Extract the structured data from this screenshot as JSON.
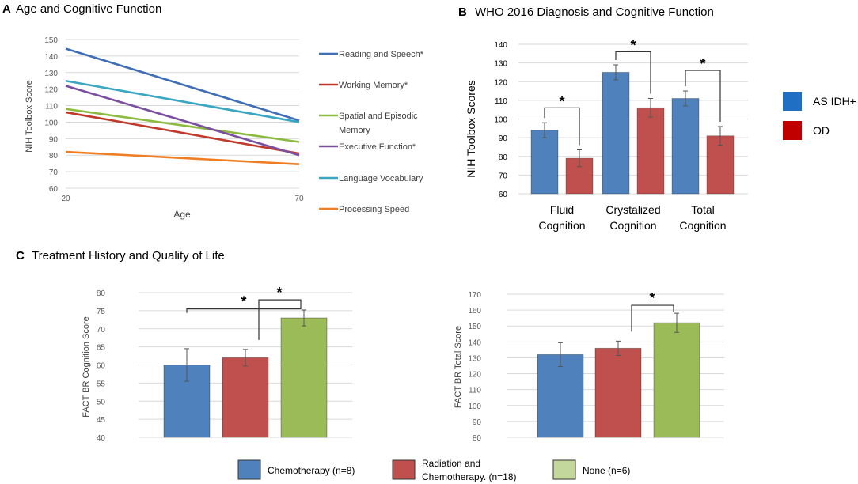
{
  "colors": {
    "reading": "#3f6eb5",
    "working": "#c0392b",
    "spatial": "#8cba3f",
    "executive": "#7b4fa0",
    "language": "#3aa6c2",
    "processing": "#ef7d22",
    "blue_bar": "#4f81bd",
    "red_bar": "#c0504d",
    "green_bar": "#9bbb59",
    "legend_blue": "#1f6fc4",
    "legend_red": "#c00000",
    "legend_chemo": "#4f81bd",
    "legend_rad": "#c0504d",
    "legend_none": "#c3d69b",
    "grid": "#d9d9d9",
    "axis_text": "#595959"
  },
  "chart_data": [
    {
      "id": "A",
      "panel_letter": "A",
      "type": "line",
      "title": "Age and Cognitive Function",
      "xlabel": "Age",
      "ylabel": "NIH Toolbox Score",
      "x": [
        20,
        70
      ],
      "xticks": [
        "20",
        "70"
      ],
      "ylim": [
        60,
        150
      ],
      "yticks": [
        60,
        70,
        80,
        90,
        100,
        110,
        120,
        130,
        140,
        150
      ],
      "series": [
        {
          "name": "Reading and Speech*",
          "values": [
            144.5,
            101
          ],
          "color_key": "reading"
        },
        {
          "name": "Working Memory*",
          "values": [
            106,
            81
          ],
          "color_key": "working"
        },
        {
          "name": "Spatial and Episodic Memory",
          "values": [
            108,
            88
          ],
          "color_key": "spatial"
        },
        {
          "name": "Executive Function*",
          "values": [
            122,
            80
          ],
          "color_key": "executive"
        },
        {
          "name": "Language Vocabulary",
          "values": [
            125,
            100
          ],
          "color_key": "language"
        },
        {
          "name": "Processing Speed",
          "values": [
            82,
            74.5
          ],
          "color_key": "processing"
        }
      ],
      "legend_lines": [
        [
          "Reading and Speech*"
        ],
        [
          "Working Memory*"
        ],
        [
          "Spatial and Episodic",
          "Memory"
        ],
        [
          "Executive Function*"
        ],
        [
          "Language Vocabulary"
        ],
        [
          "Processing Speed"
        ]
      ]
    },
    {
      "id": "B",
      "panel_letter": "B",
      "type": "bar",
      "title": "WHO 2016 Diagnosis and Cognitive Function",
      "ylabel": "NIH Toolbox Scores",
      "ylim": [
        60,
        140
      ],
      "yticks": [
        60,
        70,
        80,
        90,
        100,
        110,
        120,
        130,
        140
      ],
      "categories": [
        "Fluid Cognition",
        "Crystalized Cognition",
        "Total Cognition"
      ],
      "category_lines": [
        [
          "Fluid",
          "Cognition"
        ],
        [
          "Crystalized",
          "Cognition"
        ],
        [
          "Total",
          "Cognition"
        ]
      ],
      "series": [
        {
          "name": "AS IDH+",
          "values": [
            94,
            125,
            111
          ],
          "errors": [
            4,
            4,
            4
          ],
          "color_key": "blue_bar",
          "legend_color_key": "legend_blue"
        },
        {
          "name": "OD",
          "values": [
            79,
            106,
            91
          ],
          "errors": [
            4.5,
            5,
            5
          ],
          "color_key": "red_bar",
          "legend_color_key": "legend_red"
        }
      ],
      "significance": [
        {
          "category": 0,
          "label": "*",
          "top": 106
        },
        {
          "category": 1,
          "label": "*",
          "top": 136
        },
        {
          "category": 2,
          "label": "*",
          "top": 126
        }
      ]
    },
    {
      "id": "C1",
      "panel_letter": "C",
      "type": "bar",
      "title": "Treatment History and Quality of Life",
      "ylabel": "FACT BR Cognition Score",
      "ylim": [
        40,
        80
      ],
      "yticks": [
        40,
        45,
        50,
        55,
        60,
        65,
        70,
        75,
        80
      ],
      "categories": [
        "Chemotherapy (n=8)",
        "Radiation and Chemotherapy. (n=18)",
        "None (n=6)"
      ],
      "values": [
        60,
        62,
        73
      ],
      "errors": [
        4.5,
        2.3,
        2.2
      ],
      "color_keys": [
        "blue_bar",
        "red_bar",
        "green_bar"
      ],
      "significance": [
        {
          "from": 0,
          "to": 2,
          "top": 75.5,
          "label": "*"
        },
        {
          "from": 1,
          "to": 2,
          "top": 78,
          "label": "*"
        }
      ]
    },
    {
      "id": "C2",
      "type": "bar",
      "ylabel": "FACT BR Total Score",
      "ylim": [
        80,
        170
      ],
      "yticks": [
        80,
        90,
        100,
        110,
        120,
        130,
        140,
        150,
        160,
        170
      ],
      "categories": [
        "Chemotherapy (n=8)",
        "Radiation and Chemotherapy. (n=18)",
        "None (n=6)"
      ],
      "values": [
        132,
        136,
        152
      ],
      "errors": [
        7.5,
        4.5,
        6
      ],
      "color_keys": [
        "blue_bar",
        "red_bar",
        "green_bar"
      ],
      "significance": [
        {
          "from": 1,
          "to": 2,
          "top": 163,
          "label": "*"
        }
      ]
    }
  ],
  "bottom_legend": [
    {
      "lines": [
        "Chemotherapy (n=8)"
      ],
      "color_key": "legend_chemo"
    },
    {
      "lines": [
        "Radiation and",
        "Chemotherapy.  (n=18)"
      ],
      "color_key": "legend_rad"
    },
    {
      "lines": [
        "None  (n=6)"
      ],
      "color_key": "legend_none"
    }
  ]
}
